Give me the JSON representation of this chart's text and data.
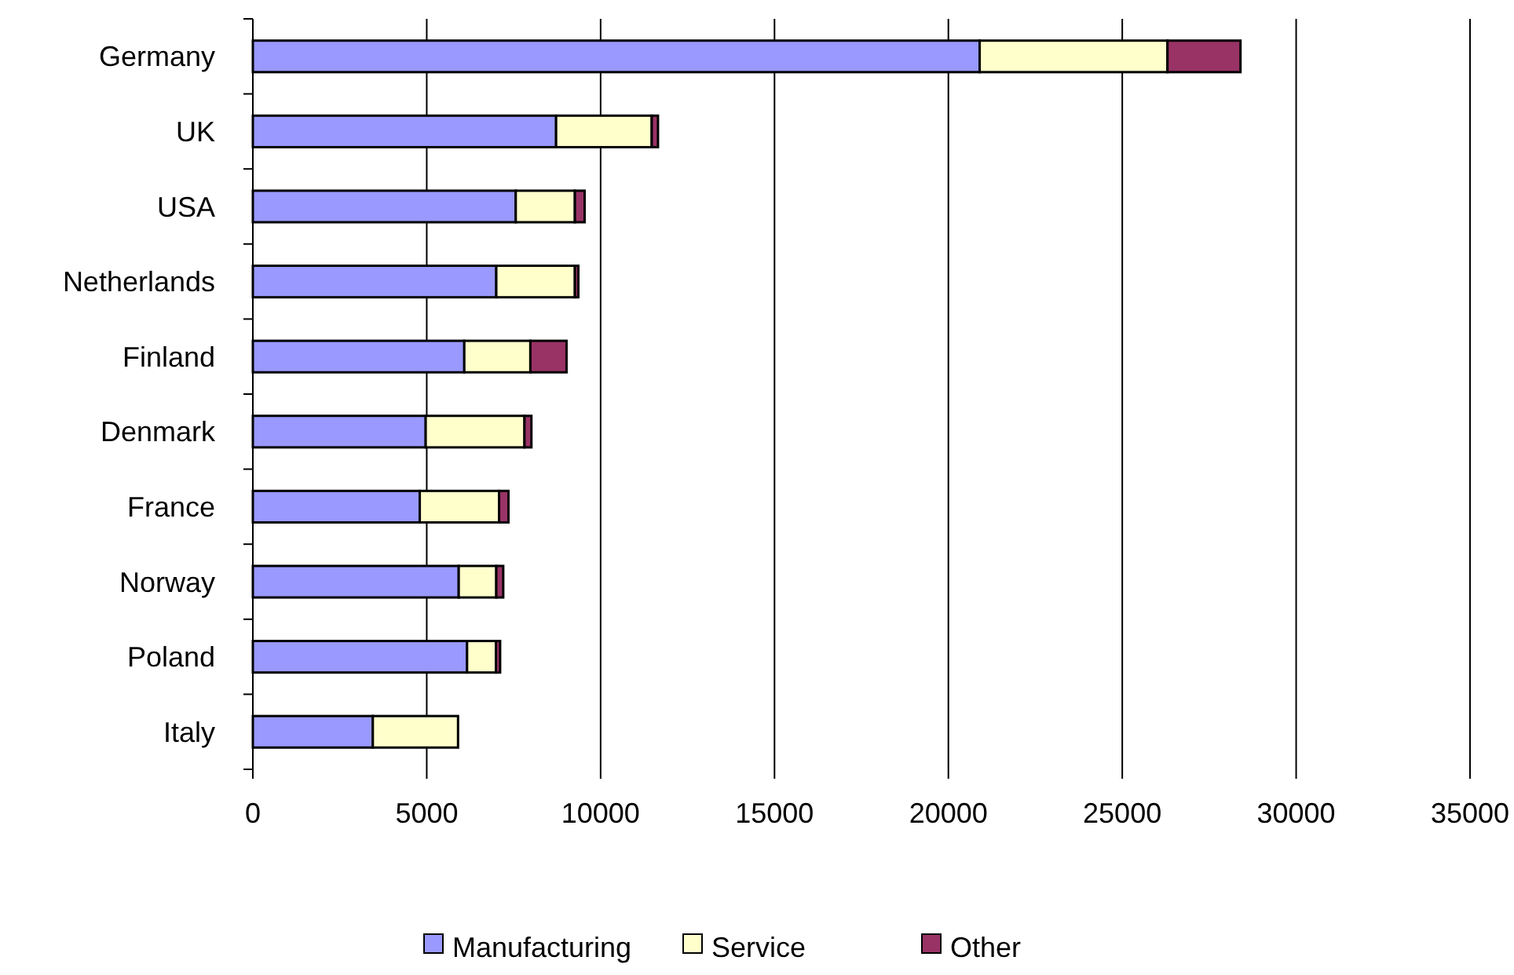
{
  "chart_data": {
    "type": "bar",
    "orientation": "horizontal",
    "stacked": true,
    "categories": [
      "Germany",
      "UK",
      "USA",
      "Netherlands",
      "Finland",
      "Denmark",
      "France",
      "Norway",
      "Poland",
      "Italy"
    ],
    "series": [
      {
        "name": "Manufacturing",
        "color": "#9999ff",
        "values": [
          20900,
          8720,
          7560,
          7000,
          6080,
          4970,
          4800,
          5920,
          6160,
          3450
        ]
      },
      {
        "name": "Service",
        "color": "#ffffcc",
        "values": [
          5400,
          2750,
          1700,
          2260,
          1900,
          2840,
          2280,
          1080,
          830,
          2450
        ]
      },
      {
        "name": "Other",
        "color": "#993366",
        "values": [
          2100,
          180,
          280,
          100,
          1040,
          200,
          270,
          200,
          120,
          0
        ]
      }
    ],
    "xlim": [
      0,
      35000
    ],
    "xticks": [
      0,
      5000,
      10000,
      15000,
      20000,
      25000,
      30000,
      35000
    ],
    "grid": "x",
    "legend": "bottom"
  }
}
